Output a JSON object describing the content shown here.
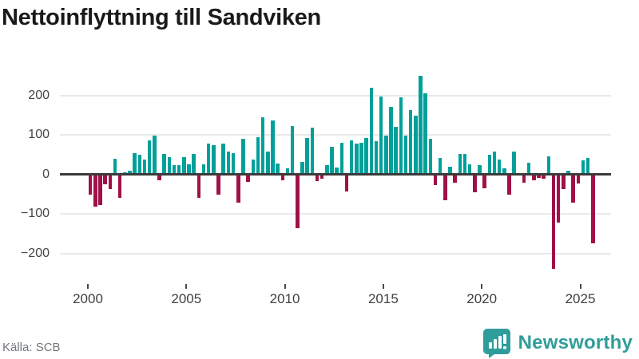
{
  "title": "Nettoinflyttning till Sandviken",
  "source": "Källa: SCB",
  "branding": {
    "name": "Newsworthy",
    "logo_icon": "bar-chart-speech-bubble-icon"
  },
  "colors": {
    "positive_bar": "#00a09a",
    "negative_bar": "#a01148",
    "zero_line": "#3b3b3b",
    "gridline": "#e9e9e9",
    "brand_teal": "#2f9d99",
    "title_text": "#1a1a1a",
    "axis_text": "#454545",
    "source_text": "#73777c"
  },
  "chart_data": {
    "type": "bar",
    "title": "Nettoinflyttning till Sandviken",
    "xlabel": "",
    "ylabel": "",
    "frequency": "quarterly",
    "x_start": "2000 Q1",
    "x_end": "2025 Q3",
    "n_points": 103,
    "grid": true,
    "legend": "none",
    "ylim": [
      -260,
      275
    ],
    "y_ticks": [
      {
        "value": 200,
        "label": "200"
      },
      {
        "value": 100,
        "label": "100"
      },
      {
        "value": 0,
        "label": "0"
      },
      {
        "value": -100,
        "label": "−100"
      },
      {
        "value": -200,
        "label": "−200"
      }
    ],
    "x_ticks": [
      {
        "year": 2000,
        "label": "2000"
      },
      {
        "year": 2005,
        "label": "2005"
      },
      {
        "year": 2010,
        "label": "2010"
      },
      {
        "year": 2015,
        "label": "2015"
      },
      {
        "year": 2020,
        "label": "2020"
      },
      {
        "year": 2025,
        "label": "2025"
      }
    ],
    "values": [
      -52,
      -81,
      -78,
      -26,
      -38,
      39,
      -60,
      5,
      10,
      53,
      50,
      38,
      86,
      98,
      -16,
      52,
      44,
      24,
      24,
      44,
      26,
      52,
      -60,
      25,
      77,
      74,
      -52,
      77,
      58,
      54,
      -72,
      90,
      -20,
      37,
      93,
      145,
      57,
      137,
      28,
      -16,
      16,
      123,
      -137,
      31,
      91,
      119,
      -17,
      -11,
      23,
      70,
      18,
      80,
      -43,
      85,
      77,
      80,
      91,
      219,
      84,
      196,
      97,
      170,
      120,
      195,
      98,
      162,
      149,
      250,
      206,
      89,
      -27,
      42,
      -66,
      19,
      -22,
      51,
      52,
      25,
      -45,
      24,
      -35,
      49,
      58,
      37,
      15,
      -51,
      58,
      0,
      -21,
      30,
      -15,
      -10,
      -11,
      45,
      -240,
      -123,
      -37,
      10,
      -72,
      -23,
      36,
      42,
      -175
    ]
  }
}
